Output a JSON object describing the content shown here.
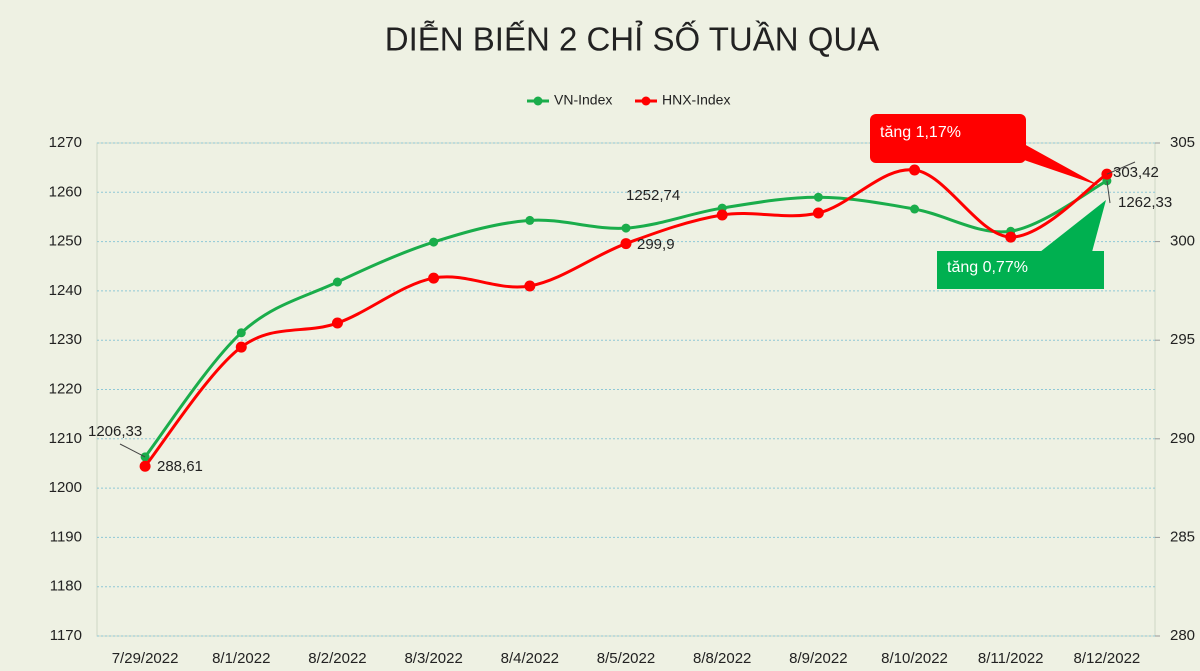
{
  "chart_data": {
    "type": "line",
    "title": "DIỄN BIẾN 2 CHỈ SỐ TUẦN QUA",
    "categories": [
      "7/29/2022",
      "8/1/2022",
      "8/2/2022",
      "8/3/2022",
      "8/4/2022",
      "8/5/2022",
      "8/8/2022",
      "8/9/2022",
      "8/10/2022",
      "8/11/2022",
      "8/12/2022"
    ],
    "series": [
      {
        "name": "VN-Index",
        "color": "#1aad4b",
        "values": [
          1206.33,
          1231.5,
          1241.8,
          1249.9,
          1254.3,
          1252.74,
          1256.8,
          1259,
          1256.6,
          1252.1,
          1262.33
        ],
        "value_labels": [
          "1206,33",
          null,
          null,
          null,
          null,
          "1252,74",
          null,
          null,
          null,
          null,
          "1262,33"
        ]
      },
      {
        "name": "HNX-Index",
        "color": "#ff0000",
        "axis": "y2",
        "values": [
          288.61,
          294.65,
          295.87,
          298.15,
          297.75,
          299.9,
          301.35,
          301.45,
          303.63,
          300.23,
          303.42
        ],
        "value_labels": [
          "288,61",
          null,
          null,
          null,
          null,
          "299,9",
          null,
          null,
          null,
          null,
          "303,42"
        ]
      }
    ],
    "ylim": [
      1170,
      1270
    ],
    "yticks": [
      1170,
      1180,
      1190,
      1200,
      1210,
      1220,
      1230,
      1240,
      1250,
      1260,
      1270
    ],
    "y2lim": [
      280,
      305
    ],
    "y2ticks": [
      280,
      285,
      290,
      295,
      300,
      305
    ],
    "grid": true,
    "legend": "top",
    "annotations": [
      {
        "text": "tăng 1,17%",
        "color": "#ff0000"
      },
      {
        "text": "tăng 0,77%",
        "color": "#00b050"
      }
    ]
  }
}
